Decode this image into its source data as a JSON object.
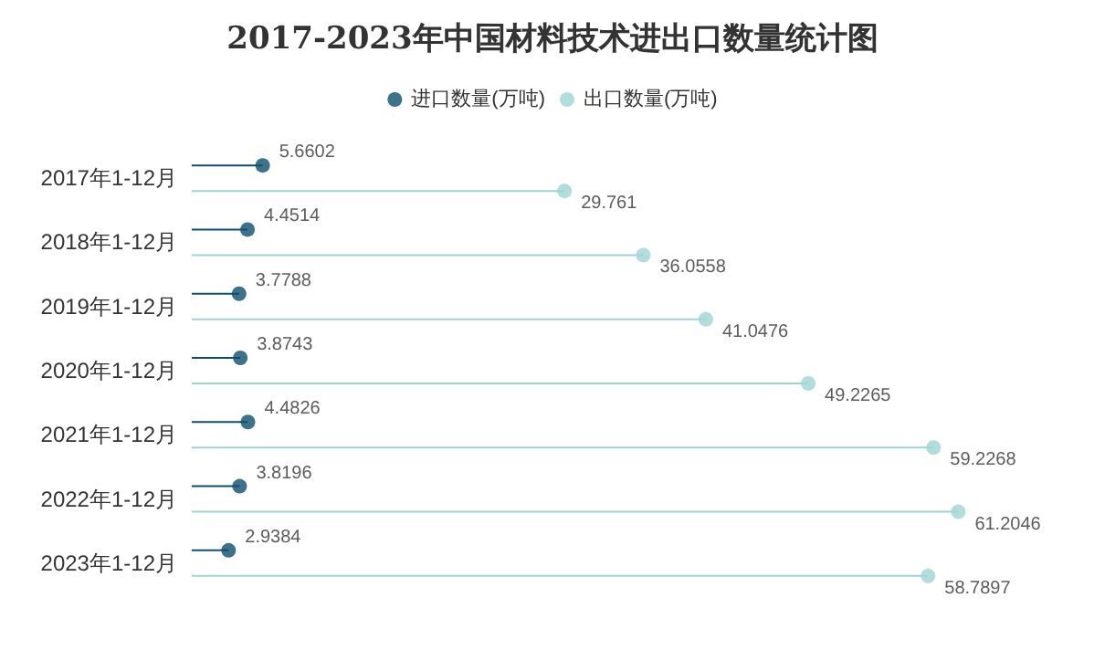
{
  "chart_data": {
    "type": "lollipop",
    "orientation": "horizontal",
    "title": "2017-2023年中国材料技术进出口数量统计图",
    "categories": [
      "2017年1-12月",
      "2018年1-12月",
      "2019年1-12月",
      "2020年1-12月",
      "2021年1-12月",
      "2022年1-12月",
      "2023年1-12月"
    ],
    "series": [
      {
        "name": "进口数量(万吨)",
        "color": "#0d4f6e",
        "values": [
          5.6602,
          4.4514,
          3.7788,
          3.8743,
          4.4826,
          3.8196,
          2.9384
        ]
      },
      {
        "name": "出口数量(万吨)",
        "color": "#9fd4d4",
        "values": [
          29.761,
          36.0558,
          41.0476,
          49.2265,
          59.2268,
          61.2046,
          58.7897
        ]
      }
    ],
    "data_labels": true,
    "legend": "top",
    "marker": "circle"
  }
}
